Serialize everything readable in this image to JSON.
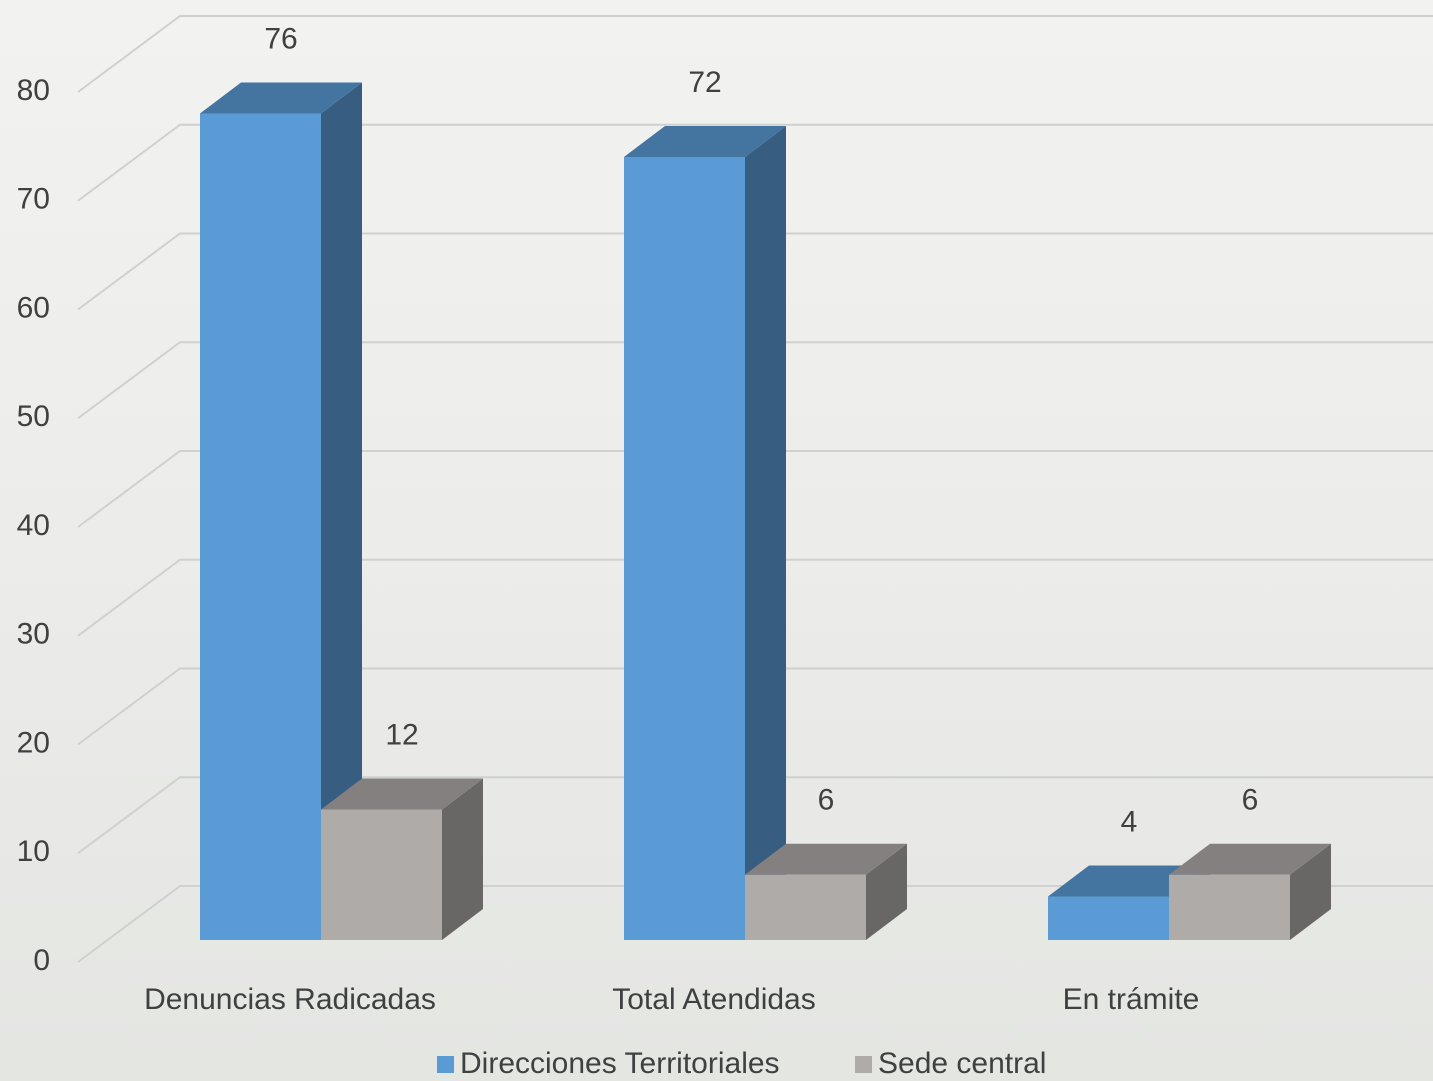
{
  "chart_data": {
    "type": "bar3d",
    "categories": [
      "Denuncias Radicadas",
      "Total Atendidas",
      "En trámite"
    ],
    "series": [
      {
        "name": "Direcciones Territoriales",
        "color": "#5b9bd5",
        "values": [
          76,
          72,
          4
        ]
      },
      {
        "name": "Sede central",
        "color": "#aeaba9",
        "values": [
          12,
          6,
          6
        ]
      }
    ],
    "ylim": [
      0,
      80
    ],
    "yticks": [
      0,
      10,
      20,
      30,
      40,
      50,
      60,
      70,
      80
    ],
    "grid": true,
    "legend": "bottom"
  }
}
